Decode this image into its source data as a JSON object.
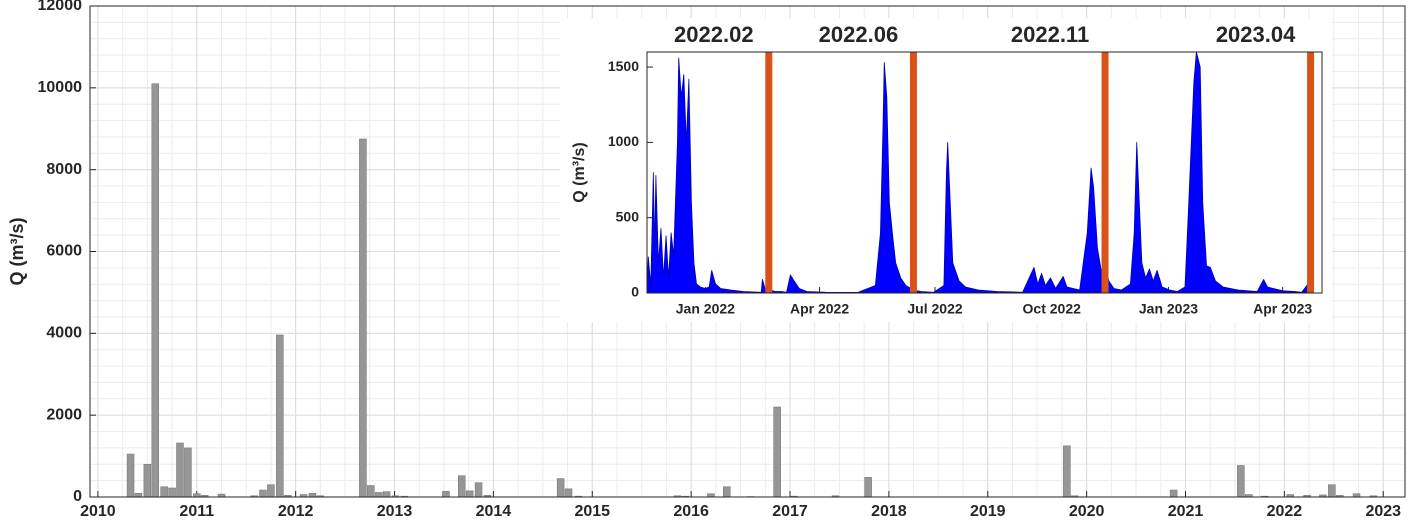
{
  "chart_data": [
    {
      "type": "bar",
      "ylabel": "Q (m³/s)",
      "color": "#969696",
      "grid": true,
      "minor_grid": true,
      "x": [
        2010.33,
        2010.41,
        2010.5,
        2010.58,
        2010.67,
        2010.75,
        2010.83,
        2010.91,
        2011.0,
        2011.08,
        2011.25,
        2011.58,
        2011.67,
        2011.75,
        2011.84,
        2011.92,
        2012.08,
        2012.17,
        2012.25,
        2012.68,
        2012.76,
        2012.84,
        2012.92,
        2013.01,
        2013.1,
        2013.52,
        2013.68,
        2013.76,
        2013.85,
        2013.94,
        2014.68,
        2014.76,
        2014.86,
        2015.86,
        2015.94,
        2016.2,
        2016.36,
        2016.6,
        2016.87,
        2017.04,
        2017.46,
        2017.79,
        2019.8,
        2019.88,
        2020.88,
        2021.56,
        2021.64,
        2021.8,
        2022.06,
        2022.23,
        2022.39,
        2022.48,
        2022.56,
        2022.73,
        2022.9
      ],
      "values": [
        1050,
        90,
        800,
        10100,
        250,
        220,
        1320,
        1200,
        80,
        40,
        70,
        30,
        170,
        300,
        3960,
        40,
        60,
        90,
        30,
        8750,
        280,
        110,
        130,
        30,
        20,
        140,
        520,
        150,
        350,
        40,
        450,
        200,
        20,
        30,
        20,
        80,
        250,
        10,
        2200,
        20,
        30,
        480,
        1250,
        30,
        170,
        770,
        60,
        20,
        60,
        40,
        50,
        300,
        40,
        80,
        30
      ],
      "xlim": [
        2009.92,
        2023.22
      ],
      "xticks": [
        2010,
        2011,
        2012,
        2013,
        2014,
        2015,
        2016,
        2017,
        2018,
        2019,
        2020,
        2021,
        2022,
        2023
      ],
      "ylim": [
        0,
        12000
      ],
      "yticks": [
        0,
        2000,
        4000,
        6000,
        8000,
        10000,
        12000
      ]
    },
    {
      "type": "area",
      "ylabel": "Q (m³/s)",
      "color": "#0000ff",
      "marker_color": "#d95319",
      "x": [
        "2021-11-16",
        "2021-11-17",
        "2021-11-19",
        "2021-11-21",
        "2021-11-22",
        "2021-11-23",
        "2021-11-25",
        "2021-11-27",
        "2021-11-29",
        "2021-12-01",
        "2021-12-03",
        "2021-12-05",
        "2021-12-07",
        "2021-12-10",
        "2021-12-11",
        "2021-12-13",
        "2021-12-15",
        "2021-12-17",
        "2021-12-19",
        "2021-12-21",
        "2021-12-23",
        "2021-12-25",
        "2021-12-28",
        "2022-01-01",
        "2022-01-04",
        "2022-01-06",
        "2022-01-09",
        "2022-01-13",
        "2022-01-21",
        "2022-01-31",
        "2022-02-14",
        "2022-02-15",
        "2022-02-17",
        "2022-02-25",
        "2022-03-02",
        "2022-03-06",
        "2022-03-09",
        "2022-03-12",
        "2022-03-16",
        "2022-03-22",
        "2022-04-06",
        "2022-05-01",
        "2022-05-15",
        "2022-05-19",
        "2022-05-21",
        "2022-05-22",
        "2022-05-24",
        "2022-05-26",
        "2022-05-29",
        "2022-05-31",
        "2022-06-04",
        "2022-06-08",
        "2022-06-14",
        "2022-06-20",
        "2022-06-30",
        "2022-07-08",
        "2022-07-10",
        "2022-07-11",
        "2022-07-13",
        "2022-07-15",
        "2022-07-20",
        "2022-07-25",
        "2022-08-04",
        "2022-08-19",
        "2022-09-08",
        "2022-09-17",
        "2022-09-20",
        "2022-09-23",
        "2022-09-26",
        "2022-09-30",
        "2022-10-04",
        "2022-10-10",
        "2022-10-13",
        "2022-10-23",
        "2022-10-29",
        "2022-11-01",
        "2022-11-03",
        "2022-11-06",
        "2022-11-09",
        "2022-11-12",
        "2022-11-15",
        "2022-11-19",
        "2022-11-25",
        "2022-12-02",
        "2022-12-05",
        "2022-12-07",
        "2022-12-09",
        "2022-12-11",
        "2022-12-14",
        "2022-12-17",
        "2022-12-20",
        "2022-12-23",
        "2022-12-27",
        "2023-01-02",
        "2023-01-08",
        "2023-01-14",
        "2023-01-17",
        "2023-01-21",
        "2023-01-23",
        "2023-01-26",
        "2023-01-28",
        "2023-01-31",
        "2023-02-03",
        "2023-02-07",
        "2023-02-13",
        "2023-02-25",
        "2023-03-12",
        "2023-03-17",
        "2023-03-20",
        "2023-04-01",
        "2023-04-11",
        "2023-04-16",
        "2023-04-21",
        "2023-04-24"
      ],
      "values": [
        0,
        240,
        50,
        800,
        300,
        780,
        200,
        430,
        100,
        380,
        100,
        400,
        250,
        1000,
        1560,
        1300,
        1450,
        1000,
        1420,
        600,
        200,
        60,
        40,
        30,
        40,
        150,
        60,
        30,
        20,
        10,
        5,
        90,
        30,
        10,
        10,
        5,
        120,
        80,
        30,
        10,
        5,
        3,
        50,
        400,
        1100,
        1530,
        1300,
        600,
        350,
        200,
        100,
        50,
        20,
        10,
        5,
        50,
        800,
        1000,
        600,
        200,
        80,
        40,
        20,
        10,
        5,
        170,
        60,
        130,
        50,
        100,
        30,
        110,
        40,
        20,
        400,
        830,
        700,
        300,
        150,
        180,
        80,
        30,
        20,
        60,
        400,
        1000,
        600,
        200,
        100,
        160,
        80,
        150,
        40,
        20,
        10,
        40,
        600,
        1400,
        1600,
        1500,
        600,
        180,
        170,
        80,
        40,
        20,
        10,
        90,
        40,
        15,
        10,
        5,
        60,
        5
      ],
      "xlim": [
        "2021-11-16",
        "2023-05-02"
      ],
      "xticks": [
        {
          "value": "2022-01-01",
          "label": "Jan 2022"
        },
        {
          "value": "2022-04-01",
          "label": "Apr 2022"
        },
        {
          "value": "2022-07-01",
          "label": "Jul 2022"
        },
        {
          "value": "2022-10-01",
          "label": "Oct 2022"
        },
        {
          "value": "2023-01-01",
          "label": "Jan 2023"
        },
        {
          "value": "2023-04-01",
          "label": "Apr 2023"
        }
      ],
      "ylim": [
        0,
        1600
      ],
      "yticks": [
        0,
        500,
        1000,
        1500
      ],
      "markers": [
        {
          "label": "2022.02",
          "x": "2022-02-20"
        },
        {
          "label": "2022.06",
          "x": "2022-06-14"
        },
        {
          "label": "2022.11",
          "x": "2022-11-12"
        },
        {
          "label": "2023.04",
          "x": "2023-04-23"
        }
      ]
    }
  ]
}
